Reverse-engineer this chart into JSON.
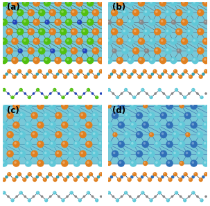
{
  "panel_titles": [
    "(a)",
    "(b)",
    "(c)",
    "(d)"
  ],
  "bg_color": "#ffffff",
  "colors": {
    "orange": "#E08020",
    "green": "#50C010",
    "blue": "#2244BB",
    "cyan": "#60C8D8",
    "teal": "#38A0B0",
    "gray": "#888888",
    "silver": "#AAAAAA",
    "dark_gray": "#555555",
    "steel_blue": "#3070B8",
    "panel_bg_a": "#B8DCE8",
    "panel_bg_b": "#C0E0E8",
    "panel_bg_c": "#A8D8E8",
    "panel_bg_d": "#A8D8E8",
    "top_view_bg": "#78C8D8",
    "bond_dark": "#445544",
    "bond_gray": "#556677"
  },
  "atom_radii": {
    "large": 0.022,
    "medium": 0.018,
    "small": 0.013
  }
}
